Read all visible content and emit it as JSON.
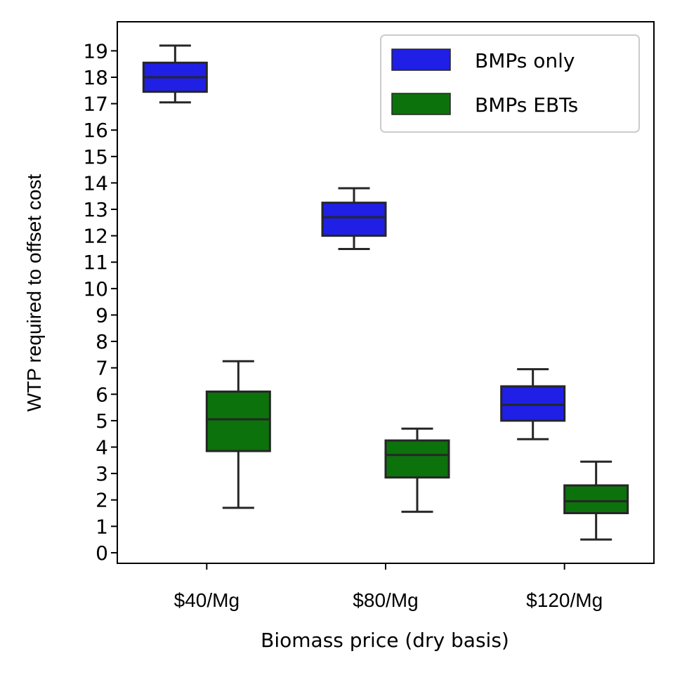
{
  "chart_data": {
    "type": "box",
    "title": "",
    "xlabel": "Biomass price (dry basis)",
    "ylabel": "WTP required to offset cost",
    "categories": [
      "$40/Mg",
      "$80/Mg",
      "$120/Mg"
    ],
    "ylim": [
      -0.4,
      20.1
    ],
    "yticks": [
      0,
      1,
      2,
      3,
      4,
      5,
      6,
      7,
      8,
      9,
      10,
      11,
      12,
      13,
      14,
      15,
      16,
      17,
      18,
      19
    ],
    "grid": false,
    "legend_position": "top-right",
    "series": [
      {
        "name": "BMPs only",
        "color": "#1f1fe6",
        "boxes": [
          {
            "min": 17.05,
            "q1": 17.45,
            "median": 18.0,
            "q3": 18.55,
            "max": 19.2
          },
          {
            "min": 11.5,
            "q1": 12.0,
            "median": 12.7,
            "q3": 13.25,
            "max": 13.8
          },
          {
            "min": 4.3,
            "q1": 5.0,
            "median": 5.6,
            "q3": 6.3,
            "max": 6.95
          }
        ]
      },
      {
        "name": "BMPs EBTs",
        "color": "#0c720c",
        "boxes": [
          {
            "min": 1.7,
            "q1": 3.85,
            "median": 5.05,
            "q3": 6.1,
            "max": 7.25
          },
          {
            "min": 1.55,
            "q1": 2.85,
            "median": 3.7,
            "q3": 4.25,
            "max": 4.7
          },
          {
            "min": 0.5,
            "q1": 1.5,
            "median": 1.95,
            "q3": 2.55,
            "max": 3.45
          }
        ]
      }
    ]
  }
}
